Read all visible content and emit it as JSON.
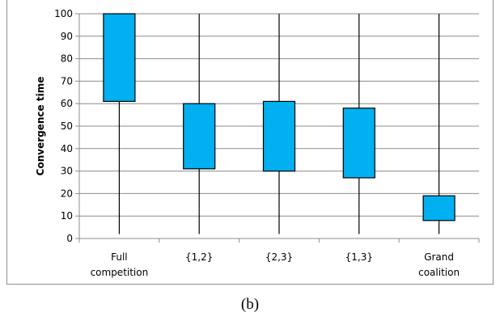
{
  "caption": "(b)",
  "chart_data": {
    "type": "box",
    "ylabel": "Convergence time",
    "xlabel": "",
    "ylim": [
      0,
      100
    ],
    "yticks": [
      0,
      10,
      20,
      30,
      40,
      50,
      60,
      70,
      80,
      90,
      100
    ],
    "grid": true,
    "categories": [
      [
        "Full",
        "competition"
      ],
      [
        "{1,2}"
      ],
      [
        "{2,3}"
      ],
      [
        "{1,3}"
      ],
      [
        "Grand",
        "coalition"
      ]
    ],
    "boxes": [
      {
        "whisker_low": 2,
        "q1": 61,
        "q3": 100,
        "whisker_high": 100
      },
      {
        "whisker_low": 2,
        "q1": 31,
        "q3": 60,
        "whisker_high": 100
      },
      {
        "whisker_low": 2,
        "q1": 30,
        "q3": 61,
        "whisker_high": 100
      },
      {
        "whisker_low": 2,
        "q1": 27,
        "q3": 58,
        "whisker_high": 100
      },
      {
        "whisker_low": 2,
        "q1": 8,
        "q3": 19,
        "whisker_high": 100
      }
    ],
    "colors": {
      "box_fill": "#00b0f0",
      "box_stroke": "#000000",
      "grid": "#8c8c8c"
    }
  }
}
